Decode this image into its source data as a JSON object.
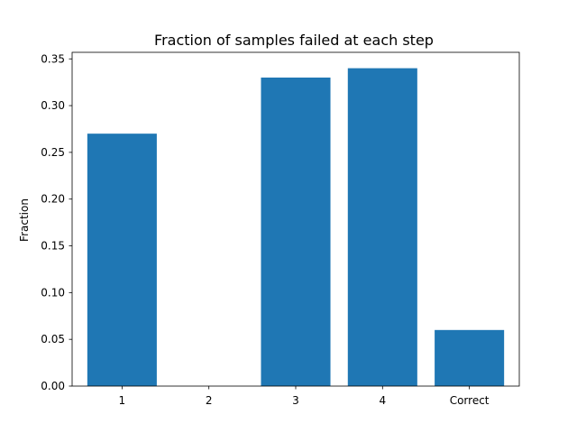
{
  "chart_data": {
    "type": "bar",
    "title": "Fraction of samples failed at each step",
    "xlabel": "",
    "ylabel": "Fraction",
    "categories": [
      "1",
      "2",
      "3",
      "4",
      "Correct"
    ],
    "values": [
      0.27,
      0.0,
      0.33,
      0.34,
      0.06
    ],
    "ylim": [
      0,
      0.357
    ],
    "yticks": [
      0.0,
      0.05,
      0.1,
      0.15,
      0.2,
      0.25,
      0.3,
      0.35
    ],
    "ytick_labels": [
      "0.00",
      "0.05",
      "0.10",
      "0.15",
      "0.20",
      "0.25",
      "0.30",
      "0.35"
    ],
    "bar_color": "#1f77b4",
    "grid": false,
    "legend": "none"
  }
}
